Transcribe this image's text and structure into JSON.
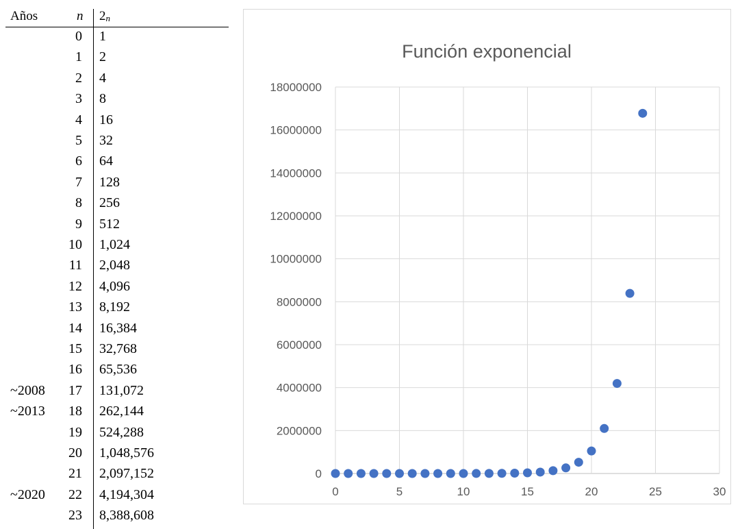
{
  "table": {
    "headers": {
      "years": "Años",
      "n": "n",
      "base": "2",
      "exp": "n"
    },
    "rows": [
      {
        "year": "",
        "n": "0",
        "value": "1"
      },
      {
        "year": "",
        "n": "1",
        "value": "2"
      },
      {
        "year": "",
        "n": "2",
        "value": "4"
      },
      {
        "year": "",
        "n": "3",
        "value": "8"
      },
      {
        "year": "",
        "n": "4",
        "value": "16"
      },
      {
        "year": "",
        "n": "5",
        "value": "32"
      },
      {
        "year": "",
        "n": "6",
        "value": "64"
      },
      {
        "year": "",
        "n": "7",
        "value": "128"
      },
      {
        "year": "",
        "n": "8",
        "value": "256"
      },
      {
        "year": "",
        "n": "9",
        "value": "512"
      },
      {
        "year": "",
        "n": "10",
        "value": "1,024"
      },
      {
        "year": "",
        "n": "11",
        "value": "2,048"
      },
      {
        "year": "",
        "n": "12",
        "value": "4,096"
      },
      {
        "year": "",
        "n": "13",
        "value": "8,192"
      },
      {
        "year": "",
        "n": "14",
        "value": "16,384"
      },
      {
        "year": "",
        "n": "15",
        "value": "32,768"
      },
      {
        "year": "",
        "n": "16",
        "value": "65,536"
      },
      {
        "year": "~2008",
        "n": "17",
        "value": "131,072"
      },
      {
        "year": "~2013",
        "n": "18",
        "value": "262,144"
      },
      {
        "year": "",
        "n": "19",
        "value": "524,288"
      },
      {
        "year": "",
        "n": "20",
        "value": "1,048,576"
      },
      {
        "year": "",
        "n": "21",
        "value": "2,097,152"
      },
      {
        "year": "~2020",
        "n": "22",
        "value": "4,194,304"
      },
      {
        "year": "",
        "n": "23",
        "value": "8,388,608"
      }
    ]
  },
  "chart_data": {
    "type": "scatter",
    "title": "Función exponencial",
    "xlabel": "",
    "ylabel": "",
    "xlim": [
      0,
      30
    ],
    "ylim": [
      0,
      18000000
    ],
    "xticks": [
      "0",
      "5",
      "10",
      "15",
      "20",
      "25",
      "30"
    ],
    "yticks": [
      "0",
      "2000000",
      "4000000",
      "6000000",
      "8000000",
      "10000000",
      "12000000",
      "14000000",
      "16000000",
      "18000000"
    ],
    "grid": true,
    "legend": "none",
    "color": "#4472c4",
    "series": [
      {
        "x": [
          0,
          1,
          2,
          3,
          4,
          5,
          6,
          7,
          8,
          9,
          10,
          11,
          12,
          13,
          14,
          15,
          16,
          17,
          18,
          19,
          20,
          21,
          22,
          23,
          24
        ],
        "y": [
          1,
          2,
          4,
          8,
          16,
          32,
          64,
          128,
          256,
          512,
          1024,
          2048,
          4096,
          8192,
          16384,
          32768,
          65536,
          131072,
          262144,
          524288,
          1048576,
          2097152,
          4194304,
          8388608,
          16777216
        ]
      }
    ]
  }
}
